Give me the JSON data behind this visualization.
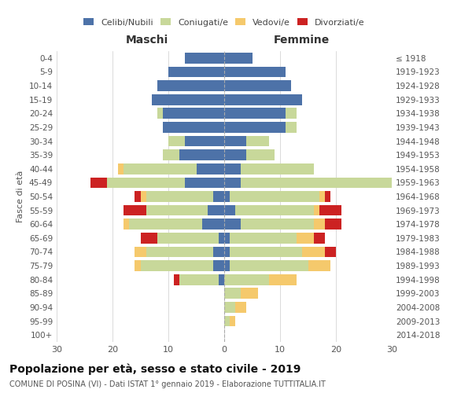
{
  "age_groups": [
    "0-4",
    "5-9",
    "10-14",
    "15-19",
    "20-24",
    "25-29",
    "30-34",
    "35-39",
    "40-44",
    "45-49",
    "50-54",
    "55-59",
    "60-64",
    "65-69",
    "70-74",
    "75-79",
    "80-84",
    "85-89",
    "90-94",
    "95-99",
    "100+"
  ],
  "birth_years": [
    "2014-2018",
    "2009-2013",
    "2004-2008",
    "1999-2003",
    "1994-1998",
    "1989-1993",
    "1984-1988",
    "1979-1983",
    "1974-1978",
    "1969-1973",
    "1964-1968",
    "1959-1963",
    "1954-1958",
    "1949-1953",
    "1944-1948",
    "1939-1943",
    "1934-1938",
    "1929-1933",
    "1924-1928",
    "1919-1923",
    "≤ 1918"
  ],
  "males": {
    "celibe": [
      7,
      10,
      12,
      13,
      11,
      11,
      7,
      8,
      5,
      7,
      2,
      3,
      4,
      1,
      2,
      2,
      1,
      0,
      0,
      0,
      0
    ],
    "coniugato": [
      0,
      0,
      0,
      0,
      1,
      0,
      3,
      3,
      13,
      14,
      12,
      11,
      13,
      11,
      12,
      13,
      7,
      0,
      0,
      0,
      0
    ],
    "vedovo": [
      0,
      0,
      0,
      0,
      0,
      0,
      0,
      0,
      1,
      0,
      1,
      0,
      1,
      0,
      2,
      1,
      0,
      0,
      0,
      0,
      0
    ],
    "divorziato": [
      0,
      0,
      0,
      0,
      0,
      0,
      0,
      0,
      0,
      3,
      1,
      4,
      0,
      3,
      0,
      0,
      1,
      0,
      0,
      0,
      0
    ]
  },
  "females": {
    "nubile": [
      5,
      11,
      12,
      14,
      11,
      11,
      4,
      4,
      3,
      3,
      1,
      2,
      3,
      1,
      1,
      1,
      0,
      0,
      0,
      0,
      0
    ],
    "coniugata": [
      0,
      0,
      0,
      0,
      2,
      2,
      4,
      5,
      13,
      27,
      16,
      14,
      13,
      12,
      13,
      14,
      8,
      3,
      2,
      1,
      0
    ],
    "vedova": [
      0,
      0,
      0,
      0,
      0,
      0,
      0,
      0,
      0,
      0,
      1,
      1,
      2,
      3,
      4,
      4,
      5,
      3,
      2,
      1,
      0
    ],
    "divorziata": [
      0,
      0,
      0,
      0,
      0,
      0,
      0,
      0,
      0,
      1,
      1,
      4,
      3,
      2,
      2,
      0,
      0,
      0,
      0,
      0,
      0
    ]
  },
  "color_celibe": "#4d72a8",
  "color_coniugato": "#c8d89a",
  "color_vedovo": "#f5c96c",
  "color_divorziato": "#cc2222",
  "xlim": 30,
  "title": "Popolazione per età, sesso e stato civile - 2019",
  "subtitle": "COMUNE DI POSINA (VI) - Dati ISTAT 1° gennaio 2019 - Elaborazione TUTTITALIA.IT",
  "ylabel_left": "Fasce di età",
  "xlabel_maschi": "Maschi",
  "xlabel_femmine": "Femmine"
}
